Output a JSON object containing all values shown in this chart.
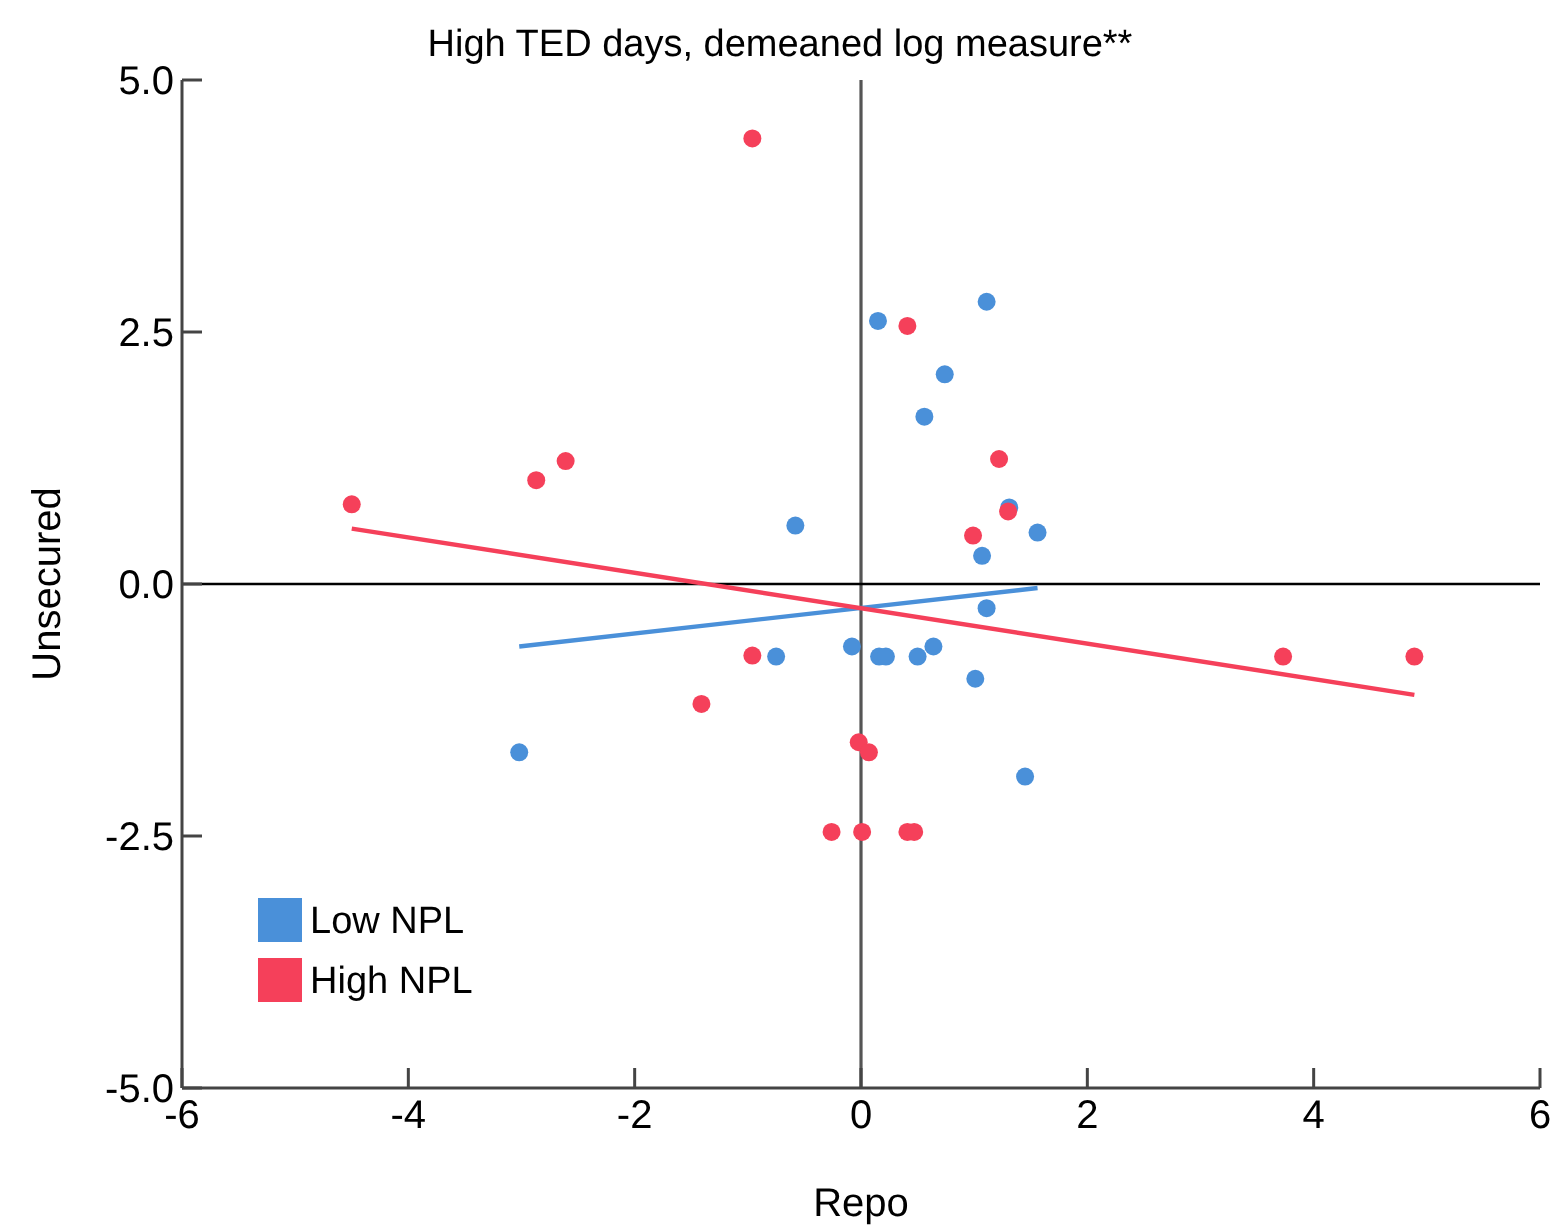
{
  "chart_data": {
    "type": "scatter",
    "subtitle": "High TED days, demeaned log measure**",
    "xlabel": "Repo",
    "ylabel": "Unsecured",
    "xlim": [
      -6,
      6
    ],
    "xticks": [
      -6,
      -4,
      -2,
      0,
      2,
      4,
      6
    ],
    "ylim": [
      -5,
      5
    ],
    "yticks": [
      {
        "value": -5,
        "label": "-5.0"
      },
      {
        "value": -2.5,
        "label": "-2.5"
      },
      {
        "value": 0,
        "label": "0.0"
      },
      {
        "value": 2.5,
        "label": "2.5"
      },
      {
        "value": 5,
        "label": "5.0"
      }
    ],
    "legend": "bottom left",
    "grid": false,
    "ref_lines": [
      {
        "axis": "x",
        "value": 0
      },
      {
        "axis": "y",
        "value": 0
      }
    ],
    "series": [
      {
        "name": "Low NPL",
        "color": "#4a90d9",
        "marker": "circle",
        "x": [
          0.15,
          1.11,
          0.74,
          0.56,
          -0.58,
          1.31,
          1.56,
          1.07,
          1.11,
          -0.75,
          -0.08,
          0.16,
          0.22,
          0.5,
          0.64,
          1.01,
          1.45,
          -3.02
        ],
        "values": [
          2.61,
          2.8,
          2.08,
          1.66,
          0.58,
          0.76,
          0.51,
          0.28,
          -0.24,
          -0.72,
          -0.62,
          -0.72,
          -0.72,
          -0.72,
          -0.62,
          -0.94,
          -1.91,
          -1.67
        ]
      },
      {
        "name": "High NPL",
        "color": "#f5405a",
        "marker": "circle",
        "x": [
          -0.96,
          -4.5,
          -2.87,
          -2.61,
          -0.96,
          -1.41,
          -0.26,
          0.41,
          1.22,
          1.3,
          0.99,
          -0.02,
          0.07,
          0.01,
          0.41,
          0.47,
          3.73,
          4.89
        ],
        "values": [
          4.42,
          0.79,
          1.03,
          1.22,
          -0.71,
          -1.19,
          -2.46,
          2.56,
          1.24,
          0.72,
          0.48,
          -1.57,
          -1.67,
          -2.46,
          -2.46,
          -2.46,
          -0.72,
          -0.72
        ]
      },
      {
        "type": "line",
        "color": "#4a90d9",
        "x": [
          -3.02,
          1.56
        ],
        "values": [
          -0.62,
          -0.04
        ]
      },
      {
        "type": "line",
        "color": "#f5405a",
        "x": [
          -4.5,
          4.89
        ],
        "values": [
          0.55,
          -1.1
        ]
      }
    ]
  }
}
